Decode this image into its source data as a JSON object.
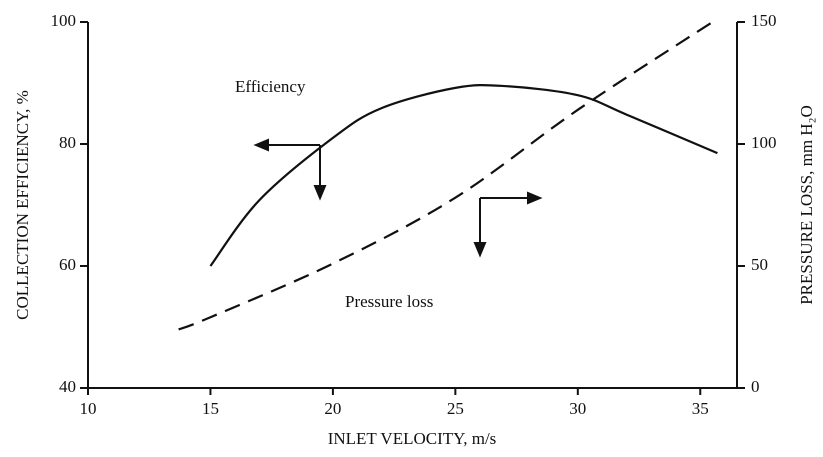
{
  "chart_data": {
    "type": "line",
    "xlabel": "INLET VELOCITY, m/s",
    "ylabel": "COLLECTION EFFICIENCY, %",
    "y2label": "PRESSURE LOSS, mm H₂O",
    "xlim": [
      10,
      36.5
    ],
    "xticks": [
      10,
      15,
      20,
      25,
      30,
      35
    ],
    "ylim": [
      40,
      100
    ],
    "yticks": [
      40,
      60,
      80,
      100
    ],
    "y2lim": [
      0,
      150
    ],
    "y2ticks": [
      0,
      50,
      100,
      150
    ],
    "series": [
      {
        "name": "Efficiency",
        "color": "#111111",
        "dashed": false,
        "x": [
          15,
          17,
          20,
          22,
          25,
          27,
          30,
          32,
          35.7
        ],
        "values": [
          60,
          70.8,
          81,
          85.9,
          89.2,
          89.5,
          88,
          84.8,
          78.5
        ]
      },
      {
        "name": "Pressure loss",
        "color": "#111111",
        "dashed": true,
        "axis": "y2",
        "x": [
          13.7,
          15,
          20,
          25,
          30,
          35.5
        ],
        "values": [
          24,
          29,
          51,
          78,
          114,
          150
        ]
      }
    ]
  }
}
